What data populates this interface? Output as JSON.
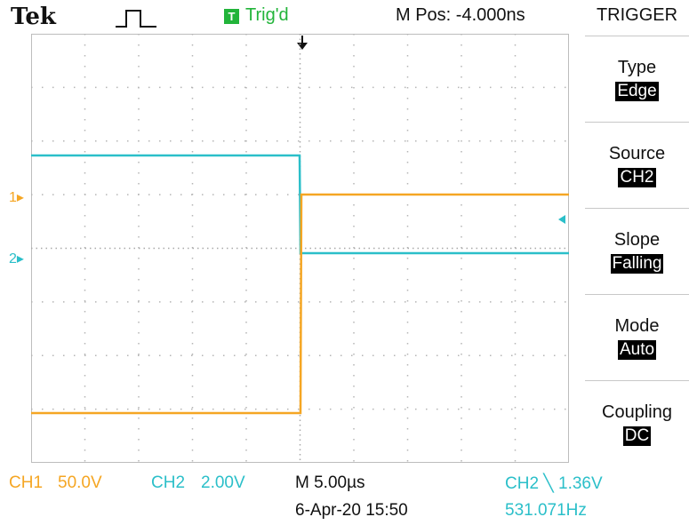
{
  "top": {
    "brand": "Tek",
    "trigger_badge": "T",
    "trigger_status": "Trig'd",
    "m_pos": "M Pos: -4.000ns"
  },
  "menu": {
    "title": "TRIGGER",
    "items": [
      {
        "label": "Type",
        "value": "Edge"
      },
      {
        "label": "Source",
        "value": "CH2"
      },
      {
        "label": "Slope",
        "value": "Falling"
      },
      {
        "label": "Mode",
        "value": "Auto"
      },
      {
        "label": "Coupling",
        "value": "DC"
      }
    ]
  },
  "markers": {
    "ch1": "1",
    "ch2": "2"
  },
  "bottom": {
    "ch1_label": "CH1",
    "ch1_scale": "50.0V",
    "ch2_label": "CH2",
    "ch2_scale": "2.00V",
    "timebase": "M 5.00µs",
    "date_time": "6-Apr-20 15:50",
    "trigger_info": "CH2 ╲ 1.36V",
    "frequency": "531.071Hz"
  },
  "colors": {
    "ch1": "#f5a623",
    "ch2": "#2bbfc9",
    "trig": "#22b43a"
  }
}
